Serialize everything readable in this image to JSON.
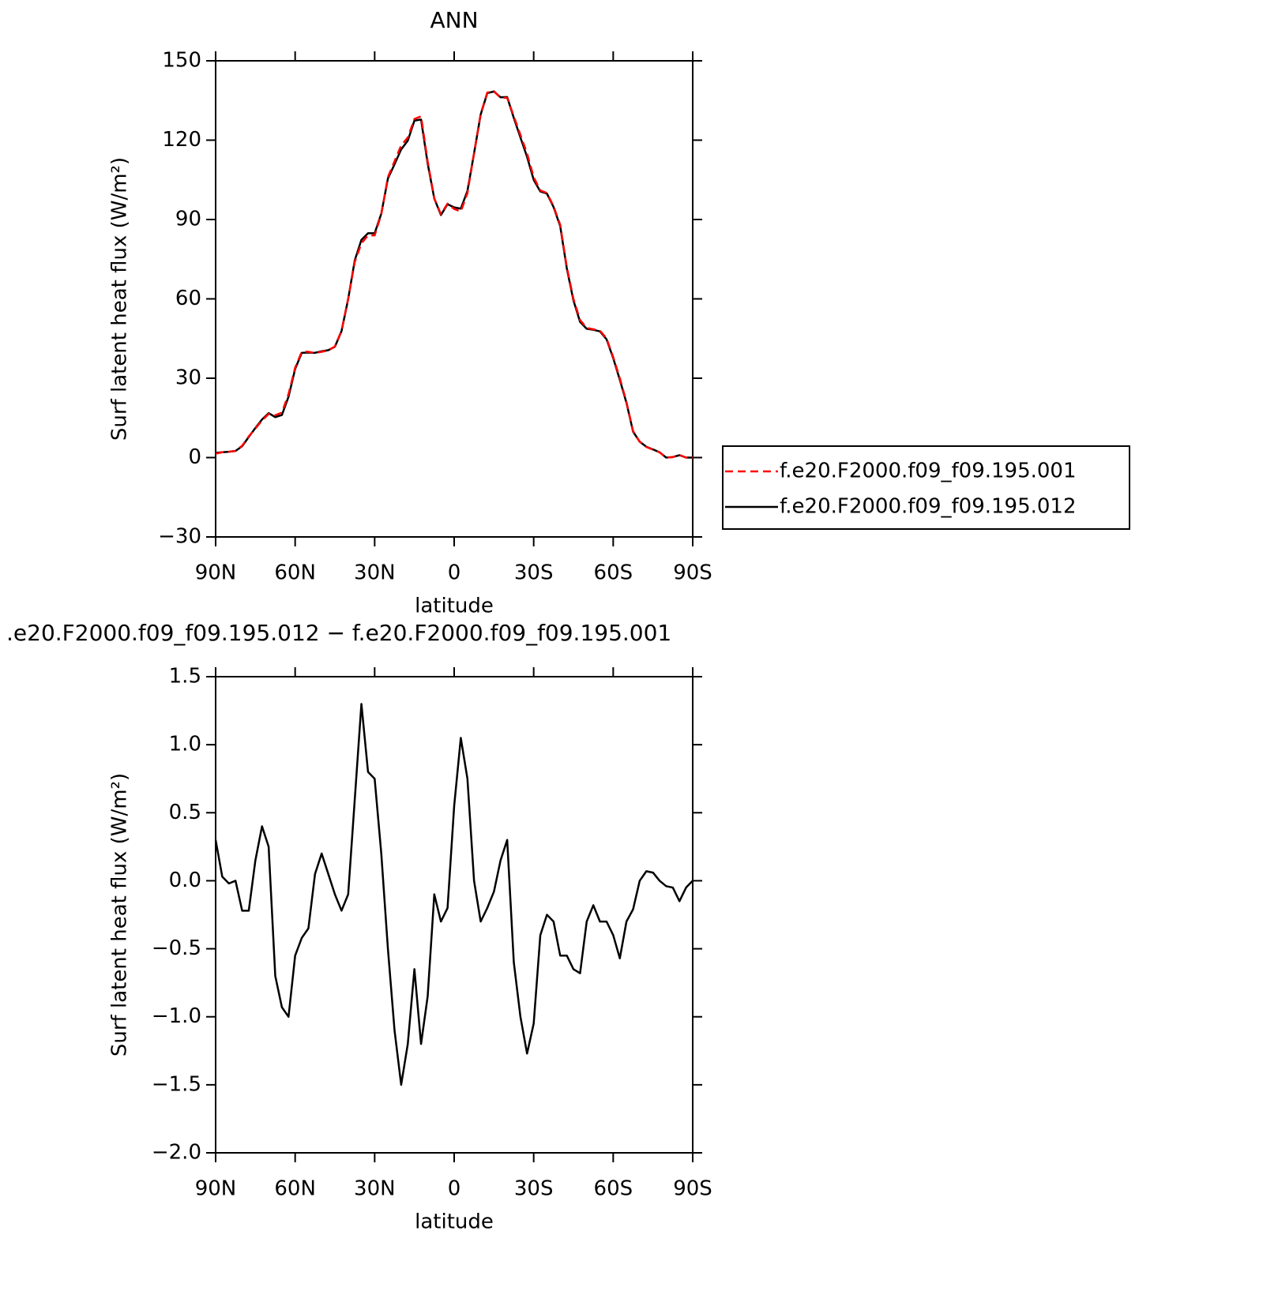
{
  "chart_data": [
    {
      "type": "line",
      "title": "ANN",
      "x_label": "latitude",
      "y_label": "Surf latent heat flux (W/m²)",
      "xlim": [
        90,
        -90
      ],
      "xticks": [
        {
          "value": 90,
          "label": "90N"
        },
        {
          "value": 60,
          "label": "60N"
        },
        {
          "value": 30,
          "label": "30N"
        },
        0,
        {
          "value": -30,
          "label": "30S"
        },
        {
          "value": -60,
          "label": "60S"
        },
        {
          "value": -90,
          "label": "90S"
        }
      ],
      "ylim": [
        -30,
        150
      ],
      "yticks": [
        {
          "value": -30,
          "label": "−30"
        },
        0,
        30,
        60,
        90,
        120,
        150
      ],
      "legend": "right",
      "x": [
        90,
        87.5,
        85,
        82.5,
        80,
        77.5,
        75,
        72.5,
        70,
        67.5,
        65,
        62.5,
        60,
        57.5,
        55,
        52.5,
        50,
        47.5,
        45,
        42.5,
        40,
        37.5,
        35,
        32.5,
        30,
        27.5,
        25,
        22.5,
        20,
        17.5,
        15,
        12.5,
        10,
        7.5,
        5,
        2.5,
        0,
        -2.5,
        -5,
        -7.5,
        -10,
        -12.5,
        -15,
        -17.5,
        -20,
        -22.5,
        -25,
        -27.5,
        -30,
        -32.5,
        -35,
        -37.5,
        -40,
        -42.5,
        -45,
        -47.5,
        -50,
        -52.5,
        -55,
        -57.5,
        -60,
        -62.5,
        -65,
        -67.5,
        -70,
        -72.5,
        -75,
        -77.5,
        -80,
        -82.5,
        -85,
        -87.5,
        -90
      ],
      "series": [
        {
          "name": "f.e20.F2000.f09_f09.195.001",
          "color": "#ff0000",
          "style": "dashed",
          "values": [
            1.5,
            2,
            2.2,
            2.5,
            4.5,
            8,
            11,
            14,
            16.5,
            16,
            17,
            24,
            34,
            40,
            40,
            39.5,
            40,
            40.5,
            42,
            48,
            60,
            74,
            81,
            84,
            84,
            92,
            106,
            112,
            118,
            121,
            128,
            129,
            112,
            98,
            92,
            96,
            94,
            93,
            100,
            115,
            130,
            138,
            138.5,
            136,
            136,
            129,
            122,
            115,
            106,
            101,
            100,
            95,
            88,
            72,
            60,
            52,
            49,
            48.5,
            48,
            45,
            38,
            30,
            21,
            10,
            6,
            4,
            3,
            2,
            0,
            0.2,
            1,
            0,
            0
          ]
        },
        {
          "name": "f.e20.F2000.f09_f09.195.012",
          "color": "#000000",
          "style": "solid",
          "values": [
            1.8,
            2.0,
            2.2,
            2.5,
            4.3,
            7.8,
            11.2,
            14.4,
            16.8,
            15.3,
            16.1,
            23,
            33.5,
            39.6,
            39.7,
            39.6,
            40.2,
            40.6,
            41.9,
            47.8,
            59.9,
            74.6,
            82.3,
            84.8,
            84.8,
            92.2,
            105.5,
            110.9,
            116.5,
            119.8,
            127.4,
            127.8,
            111.2,
            97.9,
            91.7,
            95.8,
            94.6,
            94.1,
            100.8,
            115,
            129.7,
            137.8,
            138.4,
            136.2,
            136.3,
            128.4,
            121,
            113.7,
            105,
            100.6,
            99.8,
            94.7,
            87.5,
            71.5,
            59.4,
            51.3,
            48.7,
            48.3,
            47.7,
            44.7,
            37.6,
            29.4,
            20.7,
            9.8,
            6,
            4.1,
            3.1,
            2,
            0,
            0.2,
            0.9,
            0,
            0
          ]
        }
      ]
    },
    {
      "type": "line",
      "title": ".e20.F2000.f09_f09.195.012 − f.e20.F2000.f09_f09.195.001",
      "x_label": "latitude",
      "y_label": "Surf latent heat flux (W/m²)",
      "xlim": [
        90,
        -90
      ],
      "xticks": [
        {
          "value": 90,
          "label": "90N"
        },
        {
          "value": 60,
          "label": "60N"
        },
        {
          "value": 30,
          "label": "30N"
        },
        0,
        {
          "value": -30,
          "label": "30S"
        },
        {
          "value": -60,
          "label": "60S"
        },
        {
          "value": -90,
          "label": "90S"
        }
      ],
      "ylim": [
        -2,
        1.5
      ],
      "yticks": [
        {
          "value": -2,
          "label": "−2.0"
        },
        {
          "value": -1.5,
          "label": "−1.5"
        },
        {
          "value": -1,
          "label": "−1.0"
        },
        {
          "value": -0.5,
          "label": "−0.5"
        },
        {
          "value": 0,
          "label": "0.0"
        },
        0.5,
        {
          "value": 1,
          "label": "1.0"
        },
        1.5
      ],
      "color": "#000000",
      "x": [
        90,
        87.5,
        85,
        82.5,
        80,
        77.5,
        75,
        72.5,
        70,
        67.5,
        65,
        62.5,
        60,
        57.5,
        55,
        52.5,
        50,
        47.5,
        45,
        42.5,
        40,
        37.5,
        35,
        32.5,
        30,
        27.5,
        25,
        22.5,
        20,
        17.5,
        15,
        12.5,
        10,
        7.5,
        5,
        2.5,
        0,
        -2.5,
        -5,
        -7.5,
        -10,
        -12.5,
        -15,
        -17.5,
        -20,
        -22.5,
        -25,
        -27.5,
        -30,
        -32.5,
        -35,
        -37.5,
        -40,
        -42.5,
        -45,
        -47.5,
        -50,
        -52.5,
        -55,
        -57.5,
        -60,
        -62.5,
        -65,
        -67.5,
        -70,
        -72.5,
        -75,
        -77.5,
        -80,
        -82.5,
        -85,
        -87.5,
        -90
      ],
      "values": [
        0.3,
        0.03,
        -0.02,
        0,
        -0.22,
        -0.22,
        0.15,
        0.4,
        0.25,
        -0.7,
        -0.93,
        -1.0,
        -0.55,
        -0.42,
        -0.35,
        0.05,
        0.2,
        0.05,
        -0.1,
        -0.22,
        -0.1,
        0.6,
        1.3,
        0.8,
        0.75,
        0.2,
        -0.5,
        -1.1,
        -1.5,
        -1.2,
        -0.65,
        -1.2,
        -0.85,
        -0.1,
        -0.3,
        -0.2,
        0.55,
        1.05,
        0.75,
        0,
        -0.3,
        -0.2,
        -0.08,
        0.15,
        0.3,
        -0.6,
        -1.0,
        -1.27,
        -1.05,
        -0.4,
        -0.25,
        -0.3,
        -0.55,
        -0.55,
        -0.65,
        -0.68,
        -0.3,
        -0.18,
        -0.3,
        -0.3,
        -0.4,
        -0.57,
        -0.3,
        -0.21,
        0,
        0.07,
        0.06,
        0,
        -0.04,
        -0.05,
        -0.15,
        -0.05,
        0
      ]
    }
  ]
}
